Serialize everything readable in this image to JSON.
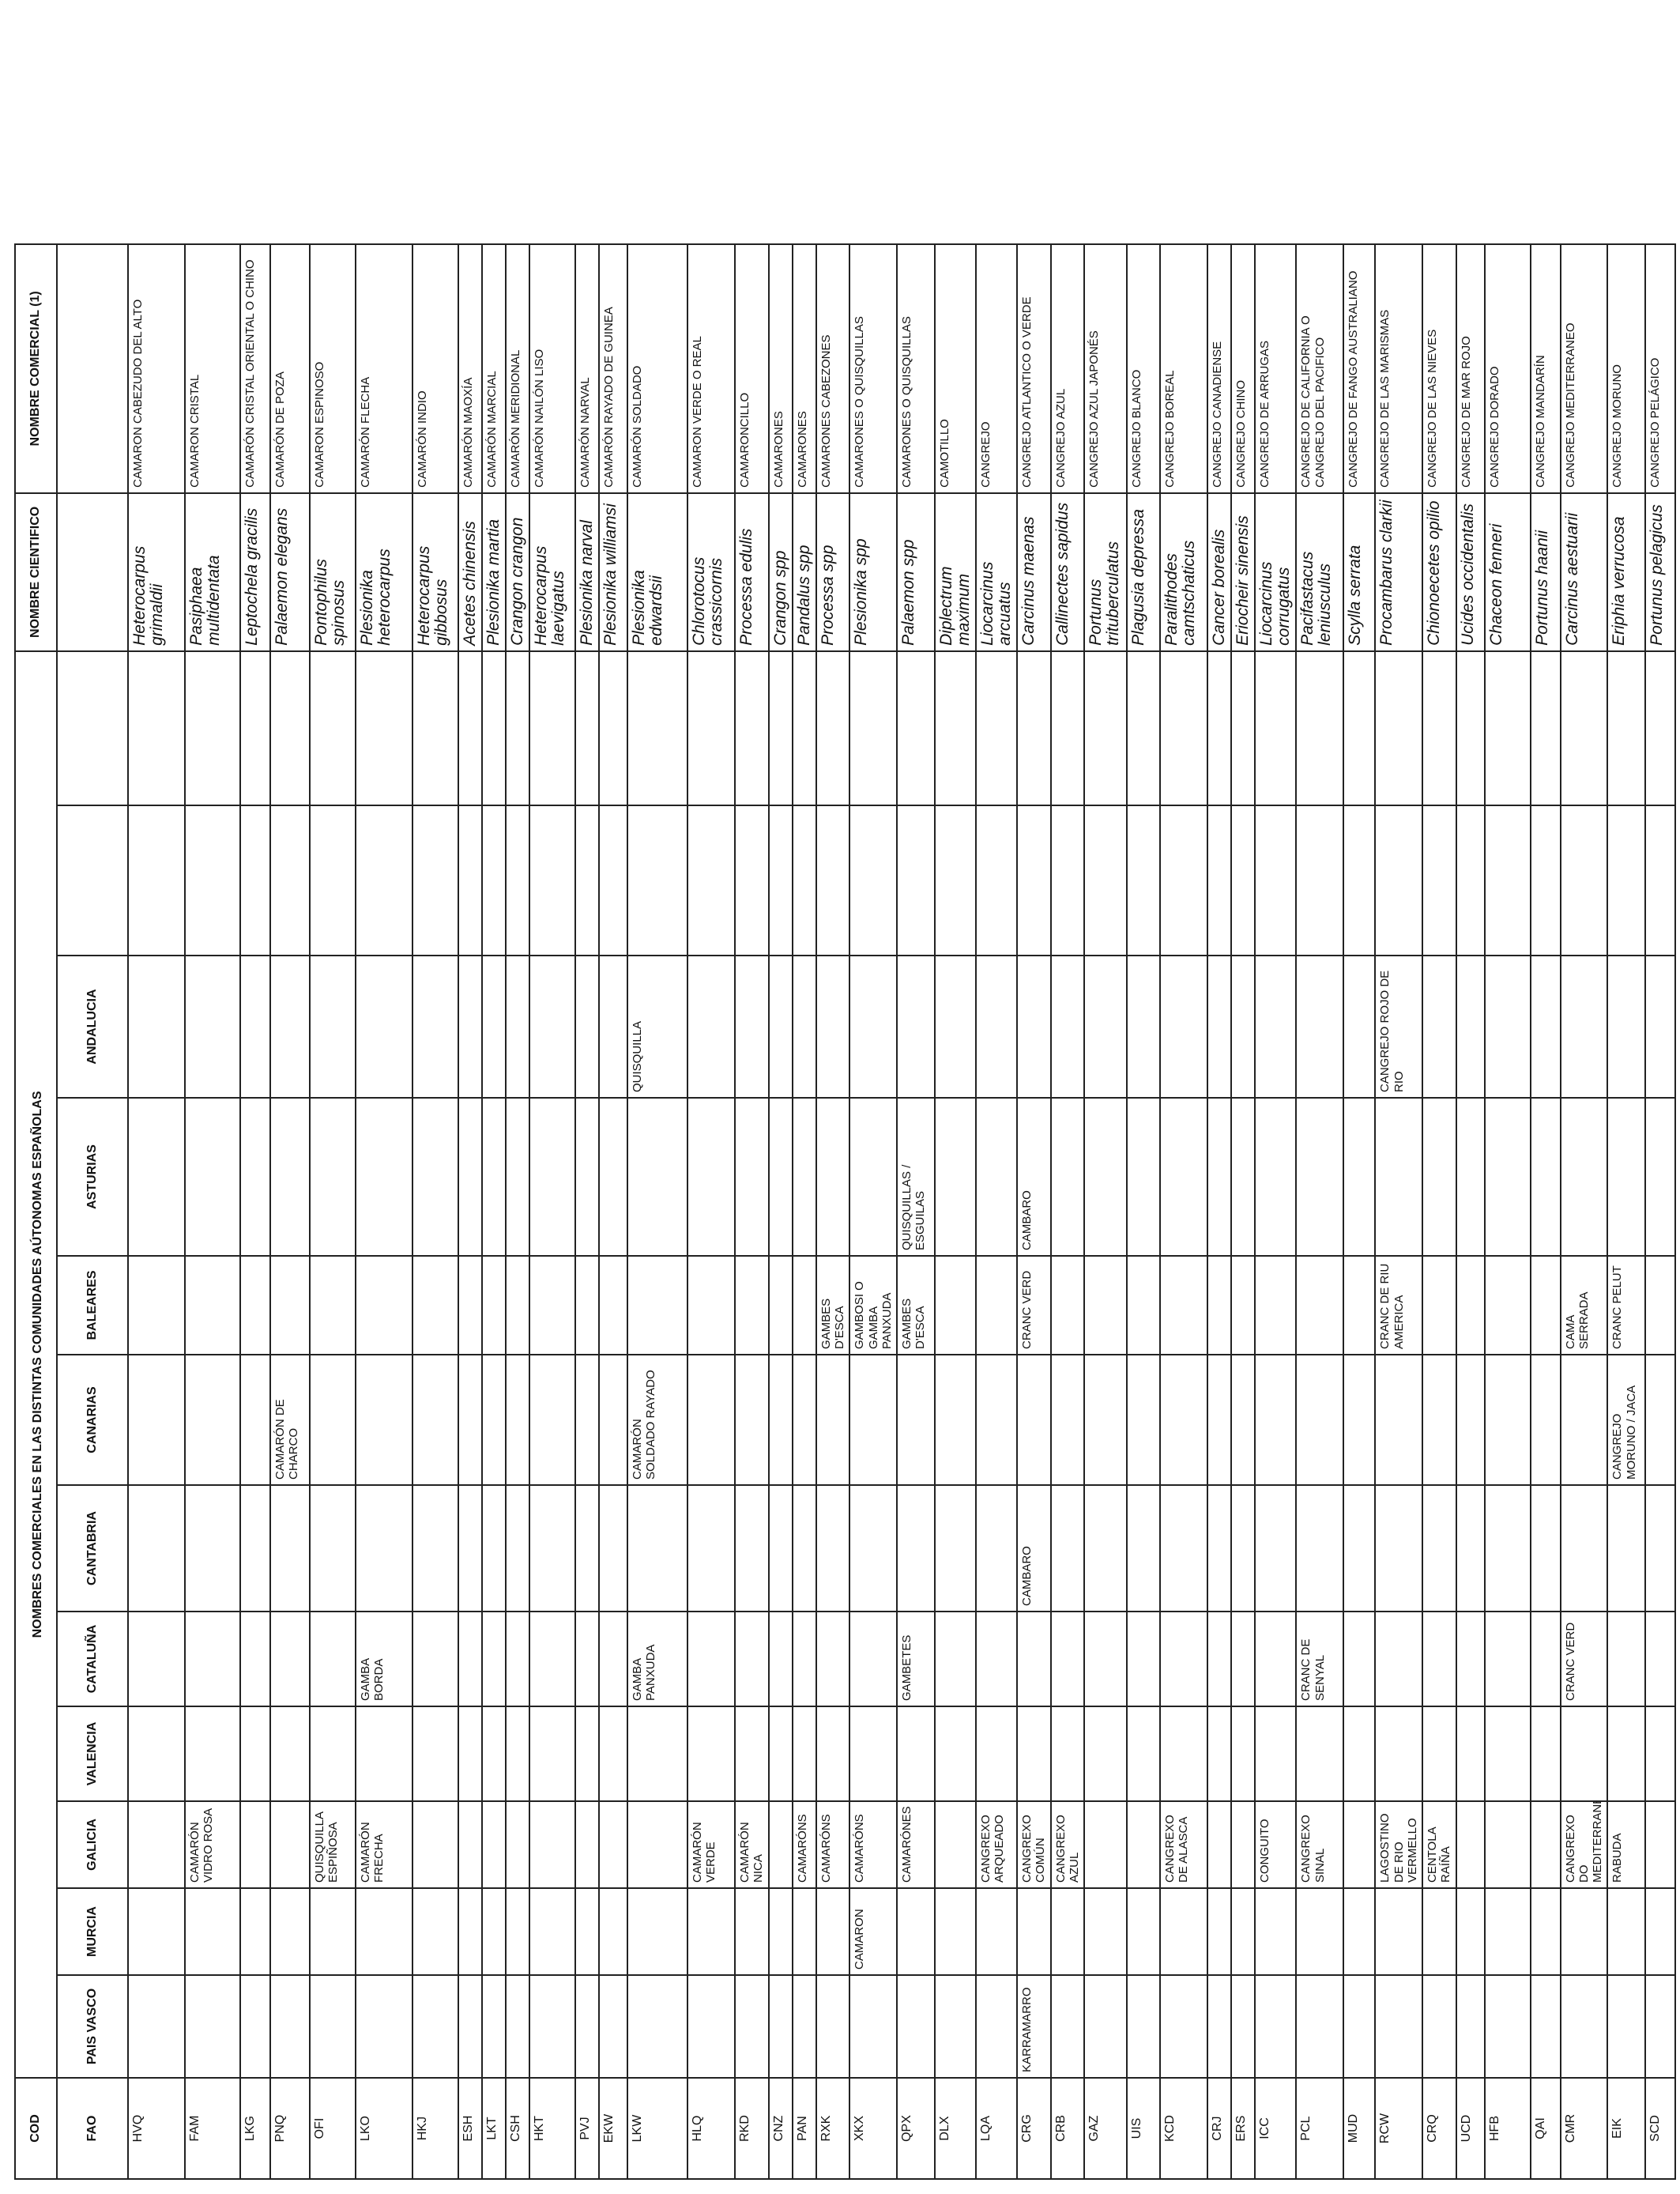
{
  "headers": {
    "cod": "COD",
    "fao": "FAO",
    "common_names": "NOMBRES COMERCIALES EN LAS DISTINTAS COMUNIDADES AÚTONOMAS ESPAÑOLAS",
    "regions": [
      "PAIS VASCO",
      "MURCIA",
      "GALICIA",
      "VALENCIA",
      "CATALUÑA",
      "CANTABRIA",
      "CANARIAS",
      "BALEARES",
      "ASTURIAS",
      "ANDALUCIA"
    ],
    "scientific": "NOMBRE CIENTIFICO",
    "commercial": "NOMBRE COMERCIAL (1)"
  },
  "rows": [
    {
      "fao": "HVQ",
      "names": [
        "",
        "",
        "",
        "",
        "",
        "",
        "",
        "",
        "",
        ""
      ],
      "sci": "Heterocarpus grimaldii",
      "common": "CAMARON CABEZUDO DEL ALTO"
    },
    {
      "fao": "FAM",
      "names": [
        "",
        "",
        "CAMARÓN VIDRO ROSA",
        "",
        "",
        "",
        "",
        "",
        "",
        ""
      ],
      "sci": "Pasiphaea multidentata",
      "common": "CAMARON CRISTAL"
    },
    {
      "fao": "LKG",
      "names": [
        "",
        "",
        "",
        "",
        "",
        "",
        "",
        "",
        "",
        ""
      ],
      "sci": "Leptochela gracilis",
      "common": "CAMARÓN CRISTAL ORIENTAL O CHINO"
    },
    {
      "fao": "PNQ",
      "names": [
        "",
        "",
        "",
        "",
        "",
        "",
        "CAMARÓN DE CHARCO",
        "",
        "",
        ""
      ],
      "sci": "Palaemon elegans",
      "common": "CAMARÓN DE POZA"
    },
    {
      "fao": "OFI",
      "names": [
        "",
        "",
        "QUISQUILLA ESPIÑOSA",
        "",
        "",
        "",
        "",
        "",
        "",
        ""
      ],
      "sci": "Pontophilus spinosus",
      "common": "CAMARON ESPINOSO"
    },
    {
      "fao": "LKO",
      "names": [
        "",
        "",
        "CAMARÓN FRECHA",
        "",
        "GAMBA BORDA",
        "",
        "",
        "",
        "",
        ""
      ],
      "sci": "Plesionika heterocarpus",
      "common": "CAMARÓN FLECHA"
    },
    {
      "fao": "HKJ",
      "names": [
        "",
        "",
        "",
        "",
        "",
        "",
        "",
        "",
        "",
        ""
      ],
      "sci": "Heterocarpus gibbosus",
      "common": "CAMARÓN INDIO"
    },
    {
      "fao": "ESH",
      "names": [
        "",
        "",
        "",
        "",
        "",
        "",
        "",
        "",
        "",
        ""
      ],
      "sci": "Acetes chinensis",
      "common": "CAMARÓN MAOXÍA"
    },
    {
      "fao": "LKT",
      "names": [
        "",
        "",
        "",
        "",
        "",
        "",
        "",
        "",
        "",
        ""
      ],
      "sci": "Plesionika martia",
      "common": "CAMARÓN MARCIAL"
    },
    {
      "fao": "CSH",
      "names": [
        "",
        "",
        "",
        "",
        "",
        "",
        "",
        "",
        "",
        ""
      ],
      "sci": "Crangon crangon",
      "common": "CAMARÓN MERIDIONAL"
    },
    {
      "fao": "HKT",
      "names": [
        "",
        "",
        "",
        "",
        "",
        "",
        "",
        "",
        "",
        ""
      ],
      "sci": "Heterocarpus laevigatus",
      "common": "CAMARÓN NAILÓN LISO"
    },
    {
      "fao": "PVJ",
      "names": [
        "",
        "",
        "",
        "",
        "",
        "",
        "",
        "",
        "",
        ""
      ],
      "sci": "Plesionika narval",
      "common": "CAMARÓN NARVAL"
    },
    {
      "fao": "EKW",
      "names": [
        "",
        "",
        "",
        "",
        "",
        "",
        "",
        "",
        "",
        ""
      ],
      "sci": "Plesionika williamsi",
      "common": "CAMARÓN RAYADO DE GUINEA"
    },
    {
      "fao": "LKW",
      "names": [
        "",
        "",
        "",
        "",
        "GAMBA PANXUDA",
        "",
        "CAMARÓN SOLDADO RAYADO",
        "",
        "",
        "QUISQUILLA"
      ],
      "sci": "Plesionika edwardsii",
      "common": "CAMARÓN SOLDADO"
    },
    {
      "fao": "HLQ",
      "names": [
        "",
        "",
        "CAMARÓN VERDE",
        "",
        "",
        "",
        "",
        "",
        "",
        ""
      ],
      "sci": "Chlorotocus crassicornis",
      "common": "CAMARON VERDE O REAL"
    },
    {
      "fao": "RKD",
      "names": [
        "",
        "",
        "CAMARÓN NICA",
        "",
        "",
        "",
        "",
        "",
        "",
        ""
      ],
      "sci": "Processa edulis",
      "common": "CAMARONCILLO"
    },
    {
      "fao": "CNZ",
      "names": [
        "",
        "",
        "",
        "",
        "",
        "",
        "",
        "",
        "",
        ""
      ],
      "sci": "Crangon spp",
      "common": "CAMARONES"
    },
    {
      "fao": "PAN",
      "names": [
        "",
        "",
        "CAMARÓNS",
        "",
        "",
        "",
        "",
        "",
        "",
        ""
      ],
      "sci": "Pandalus spp",
      "common": "CAMARONES"
    },
    {
      "fao": "RXK",
      "names": [
        "",
        "",
        "CAMARÓNS",
        "",
        "",
        "",
        "",
        "GAMBES D'ESCA",
        "",
        ""
      ],
      "sci": "Processa spp",
      "common": "CAMARONES CABEZONES"
    },
    {
      "fao": "XKX",
      "names": [
        "",
        "CAMARON",
        "CAMARÓNS",
        "",
        "",
        "",
        "",
        "GAMBOSI O GAMBA PANXUDA",
        "",
        ""
      ],
      "sci": "Plesionika spp",
      "common": "CAMARONES O QUISQUILLAS"
    },
    {
      "fao": "QPX",
      "names": [
        "",
        "",
        "CAMARÓNES",
        "",
        "GAMBETES",
        "",
        "",
        "GAMBES D'ESCA",
        "QUISQUILLAS / ESGUILAS",
        ""
      ],
      "sci": "Palaemon spp",
      "common": "CAMARONES O QUISQUILLAS"
    },
    {
      "fao": "DLX",
      "names": [
        "",
        "",
        "",
        "",
        "",
        "",
        "",
        "",
        "",
        ""
      ],
      "sci": "Diplectrum maximum",
      "common": "CAMOTILLO"
    },
    {
      "fao": "LQA",
      "names": [
        "",
        "",
        "CANGREXO ARQUEADO",
        "",
        "",
        "",
        "",
        "",
        "",
        ""
      ],
      "sci": "Liocarcinus arcuatus",
      "common": "CANGREJO"
    },
    {
      "fao": "CRG",
      "names": [
        "KARRAMARRO",
        "",
        "CANGREXO COMÚN",
        "",
        "",
        "CAMBARO",
        "",
        "CRANC VERD",
        "CAMBARO",
        ""
      ],
      "sci": "Carcinus maenas",
      "common": "CANGREJO ATLANTICO O VERDE"
    },
    {
      "fao": "CRB",
      "names": [
        "",
        "",
        "CANGREXO AZUL",
        "",
        "",
        "",
        "",
        "",
        "",
        ""
      ],
      "sci": "Callinectes sapidus",
      "common": "CANGREJO AZUL"
    },
    {
      "fao": "GAZ",
      "names": [
        "",
        "",
        "",
        "",
        "",
        "",
        "",
        "",
        "",
        ""
      ],
      "sci": "Portunus trituberculatus",
      "common": "CANGREJO AZUL JAPONÉS"
    },
    {
      "fao": "UIS",
      "names": [
        "",
        "",
        "",
        "",
        "",
        "",
        "",
        "",
        "",
        ""
      ],
      "sci": "Plagusia depressa",
      "common": "CANGREJO BLANCO"
    },
    {
      "fao": "KCD",
      "names": [
        "",
        "",
        "CANGREXO DE ALASCA",
        "",
        "",
        "",
        "",
        "",
        "",
        ""
      ],
      "sci": "Paralithodes camtschaticus",
      "common": "CANGREJO BOREAL"
    },
    {
      "fao": "CRJ",
      "names": [
        "",
        "",
        "",
        "",
        "",
        "",
        "",
        "",
        "",
        ""
      ],
      "sci": "Cancer borealis",
      "common": "CANGREJO CANADIENSE"
    },
    {
      "fao": "ERS",
      "names": [
        "",
        "",
        "",
        "",
        "",
        "",
        "",
        "",
        "",
        ""
      ],
      "sci": "Eriocheir sinensis",
      "common": "CANGREJO CHINO"
    },
    {
      "fao": "ICC",
      "names": [
        "",
        "",
        "CONGUITO",
        "",
        "",
        "",
        "",
        "",
        "",
        ""
      ],
      "sci": "Liocarcinus corrugatus",
      "common": "CANGREJO DE ARRUGAS"
    },
    {
      "fao": "PCL",
      "names": [
        "",
        "",
        "CANGREXO SINAL",
        "",
        "CRANC DE SENYAL",
        "",
        "",
        "",
        "",
        ""
      ],
      "sci": "Pacifastacus leniusculus",
      "common": "CANGREJO DE CALIFORNIA O CANGREJO DEL PACIFICO"
    },
    {
      "fao": "MUD",
      "names": [
        "",
        "",
        "",
        "",
        "",
        "",
        "",
        "",
        "",
        ""
      ],
      "sci": "Scylla serrata",
      "common": "CANGREJO DE FANGO AUSTRALIANO"
    },
    {
      "fao": "RCW",
      "names": [
        "",
        "",
        "LAGOSTINO DE RIO VERMELLO",
        "",
        "",
        "",
        "",
        "CRANC DE RIU AMERICA",
        "",
        "CANGREJO ROJO DE RIO"
      ],
      "sci": "Procambarus clarkii",
      "common": "CANGREJO DE LAS MARISMAS"
    },
    {
      "fao": "CRQ",
      "names": [
        "",
        "",
        "CENTOLA RAÍÑA",
        "",
        "",
        "",
        "",
        "",
        "",
        ""
      ],
      "sci": "Chionoecetes opilio",
      "common": "CANGREJO DE LAS NIEVES"
    },
    {
      "fao": "UCD",
      "names": [
        "",
        "",
        "",
        "",
        "",
        "",
        "",
        "",
        "",
        ""
      ],
      "sci": "Ucides occidentalis",
      "common": "CANGREJO DE MAR ROJO"
    },
    {
      "fao": "HFB",
      "names": [
        "",
        "",
        "",
        "",
        "",
        "",
        "",
        "",
        "",
        ""
      ],
      "sci": "Chaceon fenneri",
      "common": "CANGREJO DORADO"
    },
    {
      "fao": "QAI",
      "names": [
        "",
        "",
        "",
        "",
        "",
        "",
        "",
        "",
        "",
        ""
      ],
      "sci": "Portunus haanii",
      "common": "CANGREJO MANDARÍN"
    },
    {
      "fao": "CMR",
      "names": [
        "",
        "",
        "CANGREXO DO MEDITERRANEO",
        "",
        "CRANC VERD",
        "",
        "",
        "CAMA SERRADA",
        "",
        ""
      ],
      "sci": "Carcinus aestuarii",
      "common": "CANGREJO MEDITERRANEO"
    },
    {
      "fao": "EIK",
      "names": [
        "",
        "",
        "RABUDA",
        "",
        "",
        "",
        "CANGREJO MORUNO / JACA",
        "CRANC PELUT",
        "",
        ""
      ],
      "sci": "Eriphia verrucosa",
      "common": "CANGREJO MORUNO"
    },
    {
      "fao": "SCD",
      "names": [
        "",
        "",
        "",
        "",
        "",
        "",
        "",
        "",
        "",
        ""
      ],
      "sci": "Portunus pelagicus",
      "common": "CANGREJO PELÁGICO"
    }
  ]
}
